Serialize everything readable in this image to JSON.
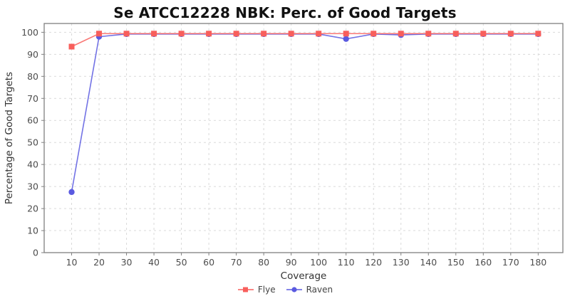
{
  "title": "Se ATCC12228 NBK: Perc. of Good Targets",
  "chart_data": {
    "type": "line",
    "title": "Se ATCC12228 NBK: Perc. of Good Targets",
    "xlabel": "Coverage",
    "ylabel": "Percentage of Good Targets",
    "x": [
      10,
      20,
      30,
      40,
      50,
      60,
      70,
      80,
      90,
      100,
      110,
      120,
      130,
      140,
      150,
      160,
      170,
      180
    ],
    "series": [
      {
        "name": "Flye",
        "marker": "square",
        "color": "#f85f5c",
        "values": [
          93.5,
          99.4,
          99.4,
          99.4,
          99.4,
          99.4,
          99.4,
          99.4,
          99.4,
          99.4,
          99.4,
          99.4,
          99.4,
          99.4,
          99.4,
          99.4,
          99.4,
          99.4
        ]
      },
      {
        "name": "Raven",
        "marker": "circle",
        "color": "#5a5ae0",
        "values": [
          27.5,
          98.0,
          99.2,
          99.2,
          99.2,
          99.2,
          99.2,
          99.2,
          99.2,
          99.2,
          97.0,
          99.2,
          98.8,
          99.2,
          99.2,
          99.2,
          99.2,
          99.2
        ]
      }
    ],
    "xticks": [
      10,
      20,
      30,
      40,
      50,
      60,
      70,
      80,
      90,
      100,
      110,
      120,
      130,
      140,
      150,
      160,
      170,
      180
    ],
    "yticks": [
      0,
      10,
      20,
      30,
      40,
      50,
      60,
      70,
      80,
      90,
      100
    ],
    "xlim": [
      0,
      189
    ],
    "ylim": [
      0,
      104
    ],
    "grid": true,
    "legend_position": "bottom",
    "colors": {
      "grid": "#d9d9d9",
      "plot_border": "#7f7f7f",
      "tick_label": "#4d4d4d",
      "axis_label": "#333333",
      "title": "#111111",
      "background": "#ffffff"
    }
  }
}
